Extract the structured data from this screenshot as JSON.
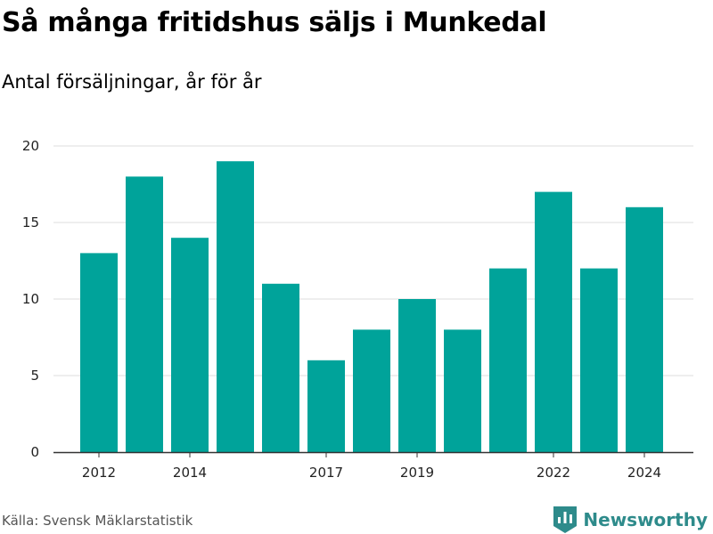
{
  "header": {
    "title": "Så många fritidshus säljs i Munkedal",
    "subtitle": "Antal försäljningar, år för år"
  },
  "footer": {
    "source": "Källa: Svensk Mäklarstatistik",
    "brand": "Newsworthy",
    "logo_icon": "bar-chart-flag-icon"
  },
  "colors": {
    "bar": "#00a39a",
    "grid": "#dddddd",
    "axis": "#333333",
    "brand": "#2e8b8b"
  },
  "chart_data": {
    "type": "bar",
    "title": "Så många fritidshus säljs i Munkedal",
    "subtitle": "Antal försäljningar, år för år",
    "categories": [
      "2012",
      "2013",
      "2014",
      "2015",
      "2016",
      "2017",
      "2018",
      "2019",
      "2020",
      "2021",
      "2022",
      "2023",
      "2024"
    ],
    "values": [
      13,
      18,
      14,
      19,
      11,
      6,
      8,
      10,
      8,
      12,
      17,
      12,
      16
    ],
    "x_tick_labels": [
      "2012",
      "2014",
      "2017",
      "2019",
      "2022",
      "2024"
    ],
    "y_ticks": [
      0,
      5,
      10,
      15,
      20
    ],
    "ylim": [
      0,
      20
    ],
    "grid": true,
    "legend": "none"
  }
}
